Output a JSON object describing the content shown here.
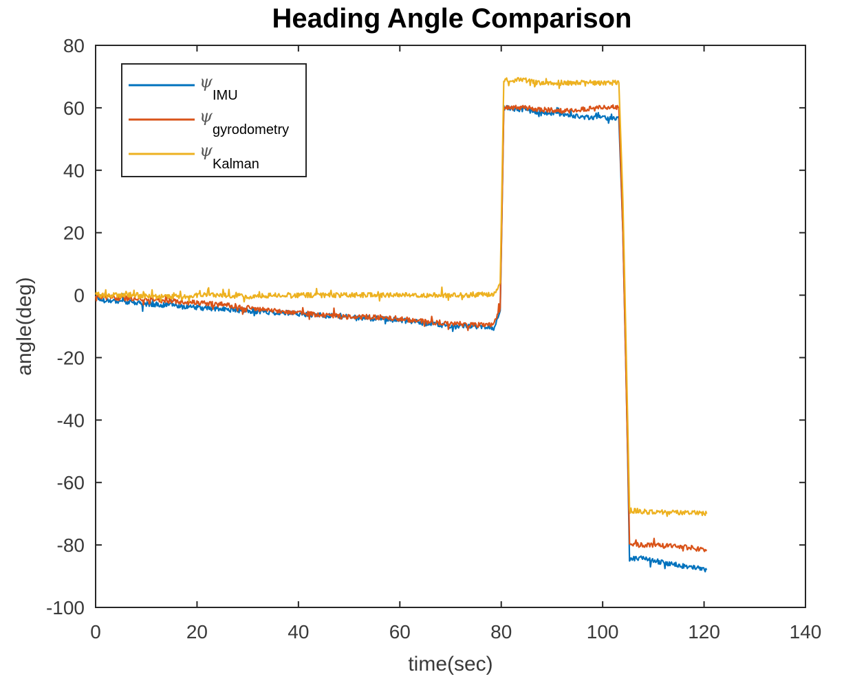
{
  "chart_data": {
    "type": "line",
    "title": "Heading Angle Comparison",
    "xlabel": "time(sec)",
    "ylabel": "angle(deg)",
    "xlim": [
      0,
      140
    ],
    "ylim": [
      -100,
      80
    ],
    "xticks": [
      0,
      20,
      40,
      60,
      80,
      100,
      120,
      140
    ],
    "yticks": [
      80,
      60,
      40,
      20,
      0,
      -20,
      -40,
      -60,
      -80,
      -100
    ],
    "grid": false,
    "legend_position": "top-left",
    "series": [
      {
        "name_symbol": "ψ",
        "name_subscript": "IMU",
        "color": "#0072BD",
        "x": [
          0,
          1,
          5,
          8,
          12,
          16,
          20,
          25,
          30,
          35,
          40,
          45,
          50,
          55,
          60,
          65,
          70,
          75,
          78.5,
          79.8,
          80.5,
          84,
          88,
          92,
          96,
          100,
          103.2,
          104,
          104.8,
          105.3,
          106,
          110,
          115,
          120.5
        ],
        "y": [
          0,
          -1.5,
          -2,
          -2.5,
          -3,
          -3.5,
          -4,
          -4.5,
          -5,
          -5.5,
          -6,
          -6.5,
          -7,
          -7.5,
          -8,
          -9,
          -10,
          -10,
          -10.5,
          -5,
          60,
          59.5,
          58.5,
          58,
          57,
          57,
          56.5,
          20,
          -40,
          -85,
          -84,
          -85,
          -86.5,
          -88
        ]
      },
      {
        "name_symbol": "ψ",
        "name_subscript": "gyrodometry",
        "color": "#D95319",
        "x": [
          0,
          1,
          5,
          8,
          12,
          16,
          20,
          25,
          30,
          35,
          40,
          45,
          50,
          55,
          60,
          65,
          70,
          75,
          78.5,
          79.8,
          80.5,
          84,
          88,
          92,
          96,
          100,
          103.2,
          104,
          104.8,
          105.3,
          106,
          110,
          115,
          120.5
        ],
        "y": [
          0,
          -0.5,
          -1,
          -1,
          -1.5,
          -2,
          -2.5,
          -3,
          -4,
          -5,
          -5.5,
          -6.5,
          -7,
          -7,
          -7.5,
          -8.5,
          -9,
          -9.5,
          -9.5,
          -4,
          60,
          60,
          59.5,
          59,
          59.5,
          60,
          60,
          20,
          -40,
          -79,
          -80,
          -80,
          -80.5,
          -81.5
        ]
      },
      {
        "name_symbol": "ψ",
        "name_subscript": "Kalman",
        "color": "#EDB120",
        "x": [
          0,
          1,
          5,
          8,
          12,
          16,
          20,
          25,
          30,
          35,
          40,
          45,
          50,
          55,
          60,
          65,
          70,
          75,
          78.5,
          79.8,
          80.5,
          84,
          88,
          92,
          96,
          100,
          103.2,
          104,
          104.8,
          105.3,
          106,
          110,
          115,
          120.5
        ],
        "y": [
          0.5,
          0,
          0,
          0,
          -0.5,
          -0.5,
          0,
          0,
          -0.5,
          0,
          0,
          0,
          0,
          0,
          0,
          0,
          0,
          0,
          0.5,
          4,
          69,
          69,
          68,
          68,
          68,
          68,
          68,
          30,
          -30,
          -69,
          -69,
          -69.5,
          -69.5,
          -70
        ]
      }
    ]
  }
}
